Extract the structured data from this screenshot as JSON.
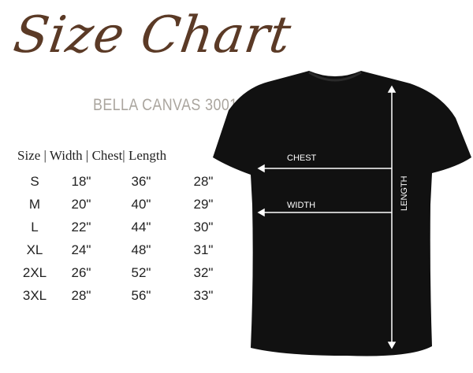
{
  "title": "Size Chart",
  "subtitle": "BELLA CANVAS 3001",
  "table": {
    "header": "Size | Width | Chest| Length",
    "rows": [
      [
        "S",
        "18\"",
        "36\"",
        "28\""
      ],
      [
        "M",
        "20\"",
        "40\"",
        "29\""
      ],
      [
        "L",
        "22\"",
        "44\"",
        "30\""
      ],
      [
        "XL",
        "24\"",
        "48\"",
        "31\""
      ],
      [
        "2XL",
        "26\"",
        "52\"",
        "32\""
      ],
      [
        "3XL",
        "28\"",
        "56\"",
        "33\""
      ]
    ]
  },
  "diagram": {
    "chest_label": "CHEST",
    "width_label": "WIDTH",
    "length_label": "LENGTH",
    "shirt_color": "#111111",
    "arrow_color": "#ffffff"
  }
}
